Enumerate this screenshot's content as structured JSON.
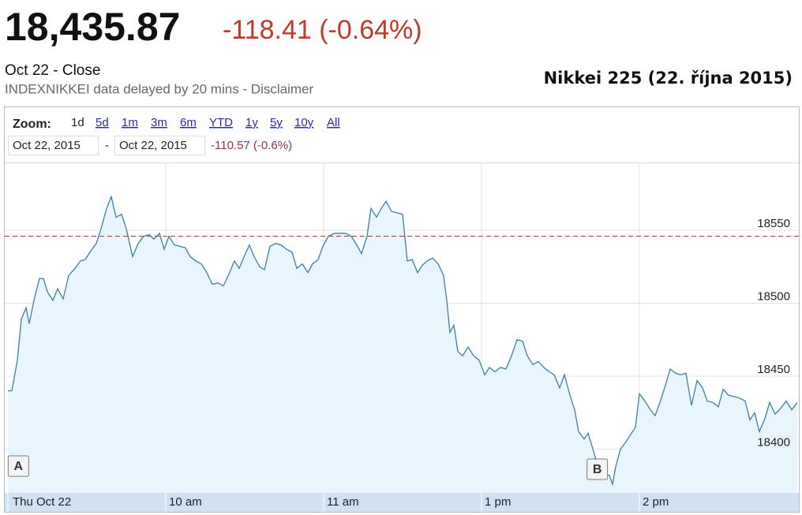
{
  "header": {
    "price": "18,435.87",
    "change": "-118.41 (-0.64%)",
    "status": "Oct 22 - Close",
    "delay_note": "INDEXNIKKEI data delayed by 20 mins - Disclaimer"
  },
  "chart_data": {
    "type": "line",
    "title": "Nikkei 225 (22. října 2015)",
    "zoom_label": "Zoom:",
    "zoom_options": [
      "1d",
      "5d",
      "1m",
      "3m",
      "6m",
      "YTD",
      "1y",
      "5y",
      "10y",
      "All"
    ],
    "range_start": "Oct 22, 2015",
    "range_separator": "-",
    "range_end": "Oct 22, 2015",
    "range_change": "-110.57 (-0.6%)",
    "color": "#3d7ea6",
    "fill_color": "#e9f5fc",
    "previous_close": 18546,
    "previous_close_color": "#a83a32",
    "annotations": [
      {
        "label": "A",
        "x": 4
      },
      {
        "label": "B",
        "x": 224
      }
    ],
    "xlim": [
      0,
      300
    ],
    "ylim": [
      18370,
      18596
    ],
    "xticks": [
      {
        "value": 0,
        "label": "Thu Oct 22"
      },
      {
        "value": 60,
        "label": "10 am"
      },
      {
        "value": 120,
        "label": "11 am"
      },
      {
        "value": 180,
        "label": "1 pm"
      },
      {
        "value": 240,
        "label": "2 pm"
      }
    ],
    "yticks": [
      18400,
      18450,
      18500,
      18550
    ],
    "grid": true,
    "x": [
      0,
      1.5,
      3.6,
      5.1,
      6.9,
      8.1,
      9.9,
      12,
      13.5,
      15,
      17.1,
      18.9,
      21,
      23.1,
      25.5,
      27.6,
      29.4,
      31.5,
      33.6,
      35.4,
      37.5,
      39.3,
      41.1,
      43.2,
      45,
      47.4,
      49.5,
      51.6,
      53.7,
      55.5,
      57.6,
      59.4,
      61.2,
      63.3,
      65.4,
      67.5,
      69.3,
      71.4,
      73.5,
      75.6,
      77.7,
      79.8,
      81.9,
      84,
      86.1,
      87.9,
      90,
      91.8,
      93.6,
      95.7,
      97.5,
      99.6,
      101.7,
      103.8,
      105.9,
      108,
      109.8,
      111.9,
      114,
      115.8,
      117.9,
      119.7,
      121.8,
      124.2,
      126.3,
      128.4,
      130.5,
      132.6,
      134.4,
      136.5,
      138,
      140.1,
      141.9,
      143.7,
      145.8,
      147.9,
      150,
      151.8,
      153.6,
      155.7,
      157.5,
      159.3,
      161.4,
      163.5,
      165.6,
      166.8,
      168,
      169.5,
      171,
      172.8,
      174.9,
      177,
      179.1,
      181.2,
      183,
      185.1,
      187.2,
      189.3,
      191.4,
      193.5,
      195.6,
      197.4,
      199.5,
      201.6,
      203.7,
      205.8,
      207.6,
      209.7,
      211.5,
      213.6,
      215.4,
      216.9,
      219,
      220.5,
      222,
      223.5,
      225,
      226.8,
      228.6,
      229.8,
      231,
      232.8,
      234.9,
      237,
      238.5,
      240,
      242.1,
      244.2,
      246,
      247.8,
      249.6,
      251.7,
      253.8,
      255.6,
      257.7,
      259.8,
      261.9,
      264,
      265.8,
      267.9,
      270,
      271.8,
      273.9,
      276,
      278.1,
      280.2,
      282,
      283.8,
      285.6,
      287.7,
      289.5,
      291.6,
      293.7,
      295.8,
      297.9,
      300
    ],
    "values": [
      18440,
      18440,
      18461,
      18489,
      18497,
      18486,
      18502,
      18517,
      18517,
      18508,
      18502,
      18510,
      18503,
      18519,
      18524,
      18529,
      18530,
      18536,
      18541,
      18551,
      18565,
      18573,
      18559,
      18561,
      18551,
      18532,
      18541,
      18546,
      18547,
      18544,
      18548,
      18537,
      18546,
      18540,
      18539,
      18538,
      18532,
      18529,
      18527,
      18521,
      18513,
      18514,
      18512,
      18520,
      18529,
      18524,
      18533,
      18540,
      18532,
      18525,
      18523,
      18539,
      18541,
      18540,
      18537,
      18535,
      18524,
      18527,
      18521,
      18527,
      18530,
      18539,
      18546,
      18548,
      18548,
      18548,
      18546,
      18540,
      18534,
      18546,
      18565,
      18559,
      18565,
      18570,
      18563,
      18562,
      18561,
      18529,
      18530,
      18521,
      18526,
      18529,
      18531,
      18527,
      18519,
      18502,
      18480,
      18485,
      18467,
      18464,
      18470,
      18464,
      18461,
      18451,
      18456,
      18453,
      18456,
      18455,
      18464,
      18475,
      18474,
      18464,
      18458,
      18460,
      18456,
      18453,
      18451,
      18442,
      18451,
      18437,
      18427,
      18412,
      18407,
      18411,
      18402,
      18393,
      18383,
      18383,
      18382,
      18376,
      18388,
      18400,
      18405,
      18411,
      18415,
      18438,
      18433,
      18427,
      18423,
      18432,
      18442,
      18455,
      18452,
      18451,
      18452,
      18430,
      18447,
      18442,
      18433,
      18432,
      18429,
      18441,
      18437,
      18436,
      18435,
      18433,
      18420,
      18425,
      18412,
      18421,
      18432,
      18424,
      18428,
      18433,
      18427,
      18432
    ]
  }
}
